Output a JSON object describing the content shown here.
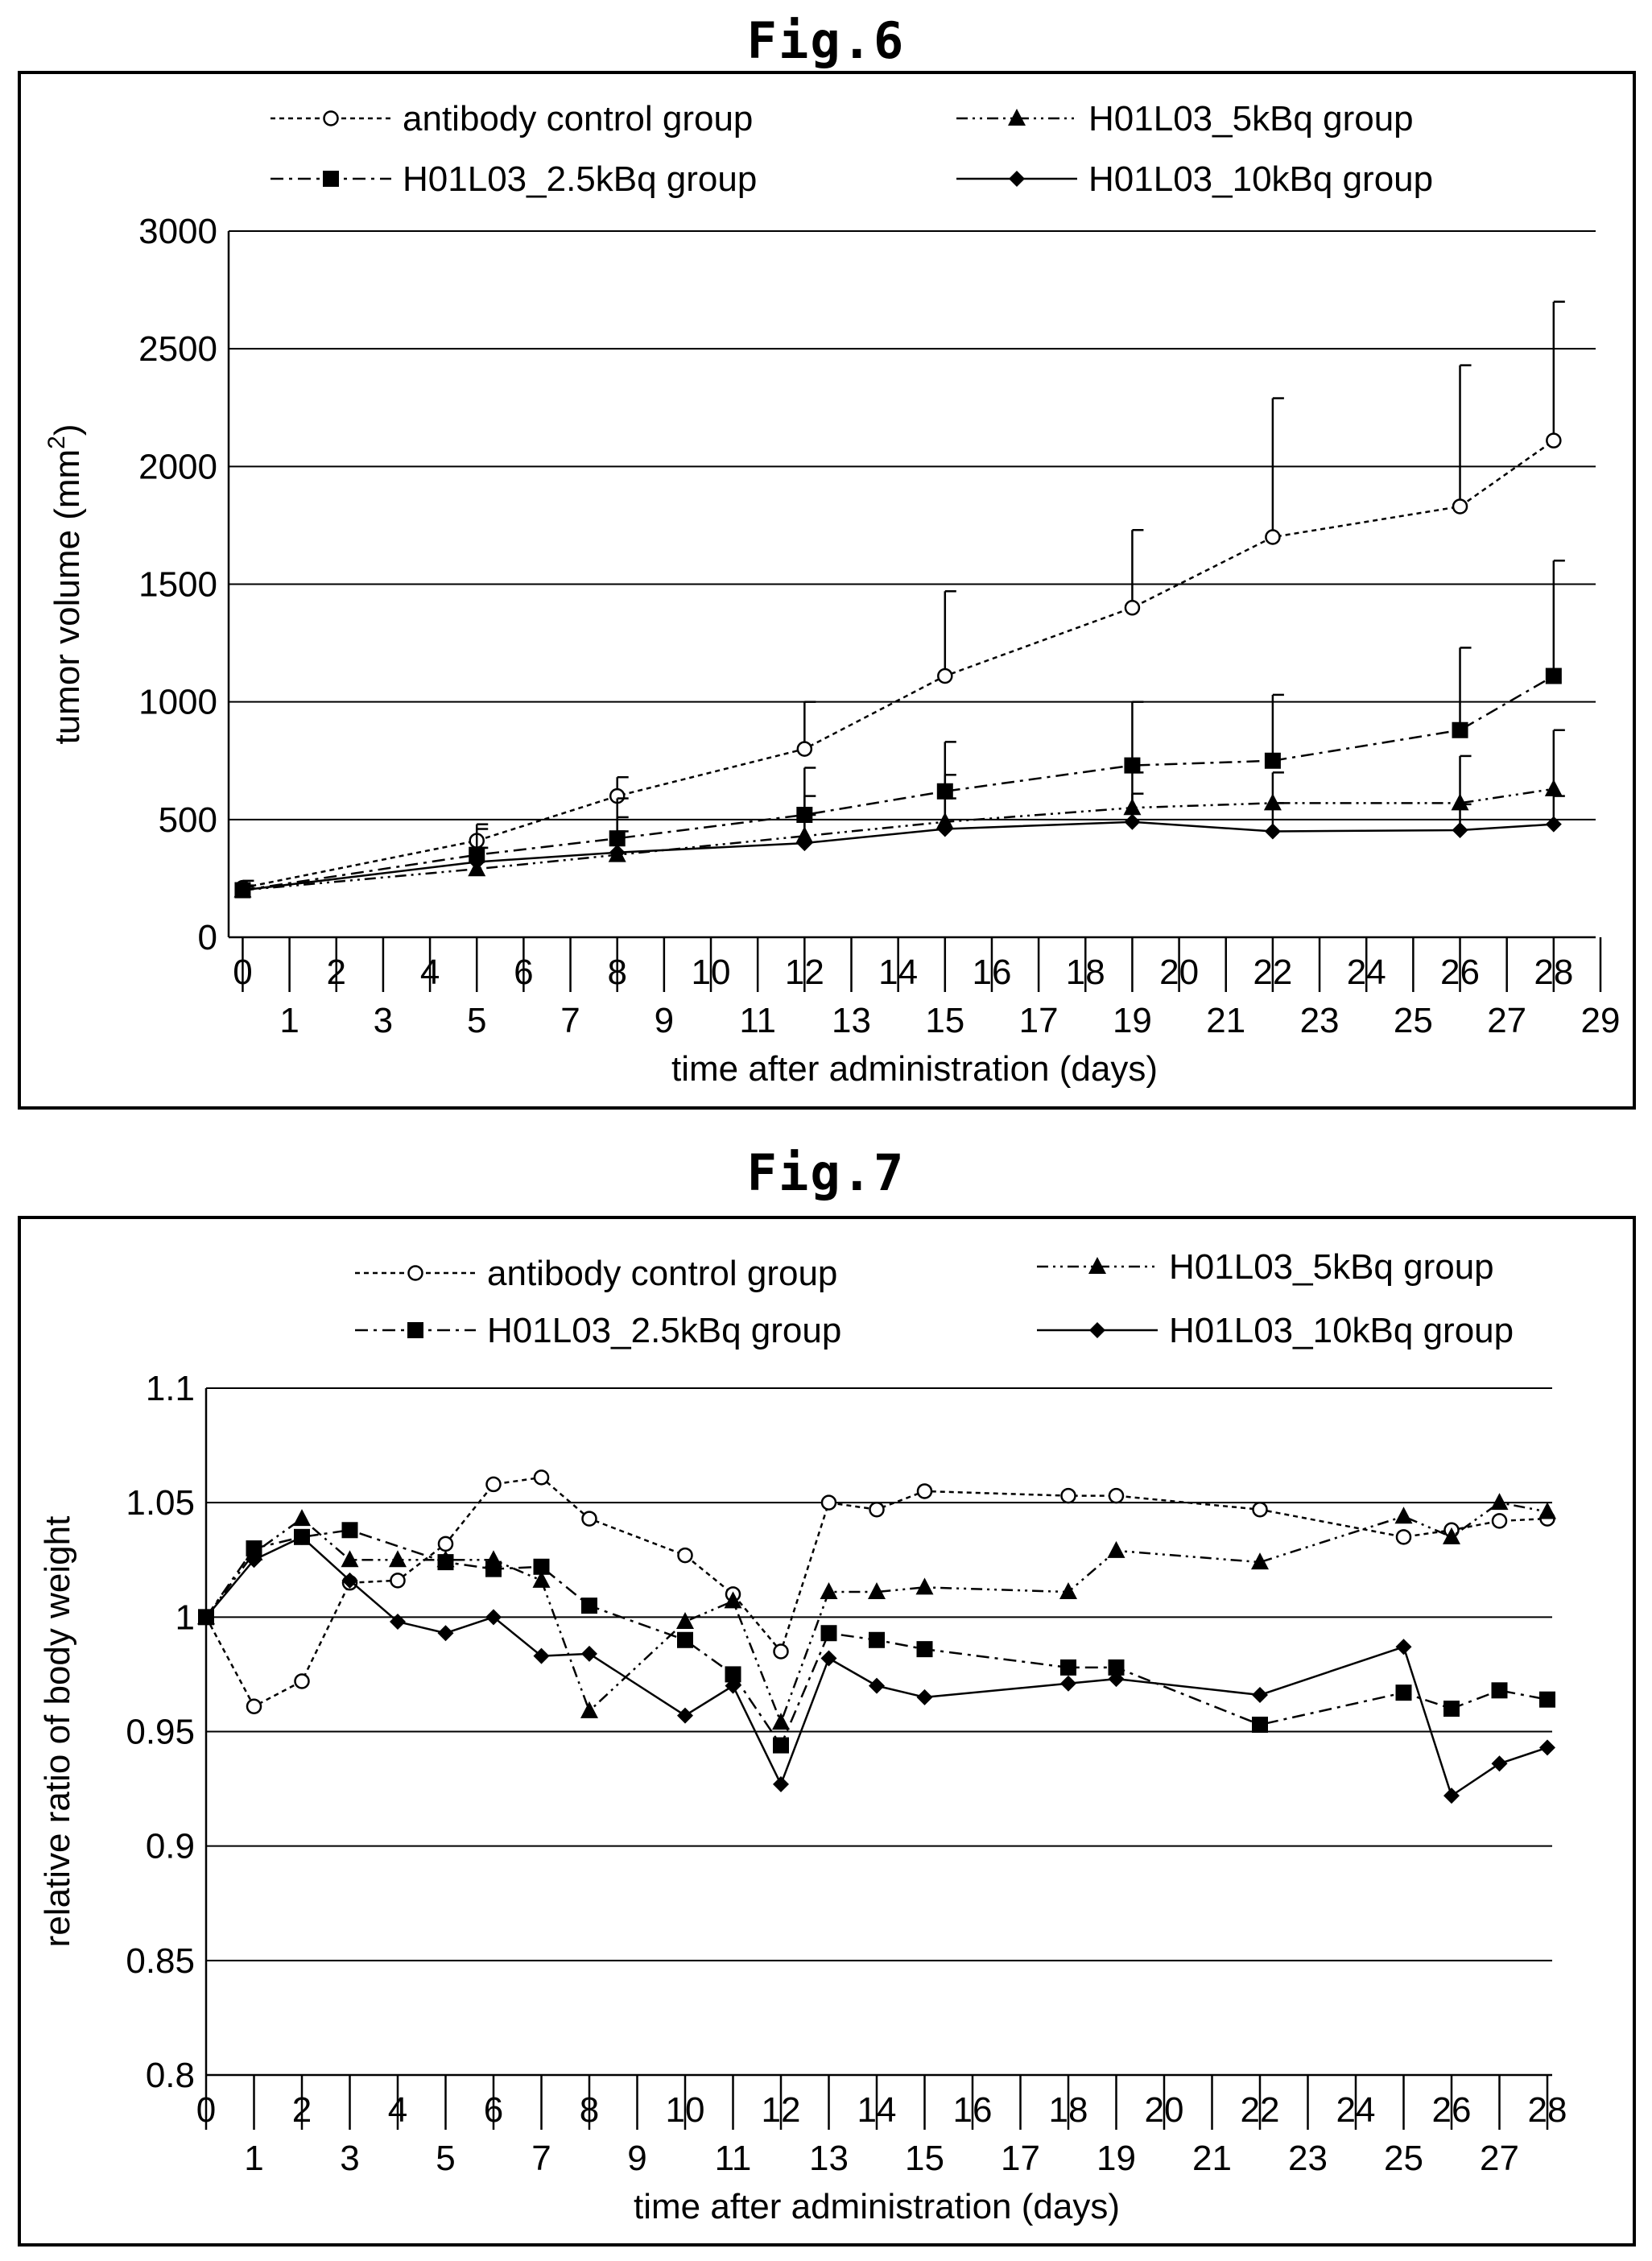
{
  "figures": [
    {
      "fig_label": "Fig.6",
      "chart_data": {
        "type": "line",
        "title": "",
        "xlabel": "time after administration (days)",
        "ylabel_main": "tumor volume (mm",
        "ylabel_sup": "2",
        "ylabel_close": ")",
        "ylim": [
          0,
          3000
        ],
        "yticks": [
          0,
          500,
          1000,
          1500,
          2000,
          2500,
          3000
        ],
        "xlim": [
          -0.3,
          29
        ],
        "x_tick_labels_upper": [
          {
            "label": "0",
            "x": 0
          },
          {
            "label": "2",
            "x": 2
          },
          {
            "label": "4",
            "x": 4
          },
          {
            "label": "6",
            "x": 6
          },
          {
            "label": "8",
            "x": 8
          },
          {
            "label": "10",
            "x": 10
          },
          {
            "label": "12",
            "x": 12
          },
          {
            "label": "14",
            "x": 14
          },
          {
            "label": "16",
            "x": 16
          },
          {
            "label": "18",
            "x": 18
          },
          {
            "label": "20",
            "x": 20
          },
          {
            "label": "22",
            "x": 22
          },
          {
            "label": "24",
            "x": 24
          },
          {
            "label": "26",
            "x": 26
          },
          {
            "label": "28",
            "x": 28
          }
        ],
        "x_tick_labels_lower": [
          {
            "label": "1",
            "x": 1
          },
          {
            "label": "3",
            "x": 3
          },
          {
            "label": "5",
            "x": 5
          },
          {
            "label": "7",
            "x": 7
          },
          {
            "label": "9",
            "x": 9
          },
          {
            "label": "11",
            "x": 11
          },
          {
            "label": "13",
            "x": 13
          },
          {
            "label": "15",
            "x": 15
          },
          {
            "label": "17",
            "x": 17
          },
          {
            "label": "19",
            "x": 19
          },
          {
            "label": "21",
            "x": 21
          },
          {
            "label": "23",
            "x": 23
          },
          {
            "label": "25",
            "x": 25
          },
          {
            "label": "27",
            "x": 27
          },
          {
            "label": "29",
            "x": 29
          }
        ],
        "grid": "horizontal",
        "legend": "top",
        "series": [
          {
            "name": "antibody control group",
            "marker": "circle-open",
            "dash": "6,5",
            "x": [
              0,
              5,
              8,
              12,
              15,
              19,
              22,
              26,
              28
            ],
            "values": [
              210,
              410,
              600,
              800,
              1110,
              1400,
              1700,
              1830,
              2110
            ],
            "err": [
              30,
              70,
              80,
              200,
              360,
              330,
              590,
              600,
              590
            ]
          },
          {
            "name": "H01L03_5kBq group",
            "marker": "triangle",
            "dash": "14,6,3,6,3,6",
            "x": [
              0,
              5,
              8,
              12,
              15,
              19,
              22,
              26,
              28
            ],
            "values": [
              200,
              290,
              350,
              430,
              490,
              550,
              570,
              570,
              630
            ],
            "err": [
              20,
              90,
              160,
              170,
              200,
              150,
              130,
              200,
              250
            ]
          },
          {
            "name": "H01L03_2.5kBq group",
            "marker": "square",
            "dash": "16,7,4,7",
            "x": [
              0,
              5,
              8,
              12,
              15,
              19,
              22,
              26,
              28
            ],
            "values": [
              200,
              350,
              420,
              520,
              620,
              730,
              750,
              880,
              1110
            ],
            "err": [
              20,
              110,
              170,
              200,
              210,
              270,
              280,
              350,
              490
            ]
          },
          {
            "name": "H01L03_10kBq group",
            "marker": "diamond",
            "dash": "",
            "x": [
              0,
              5,
              8,
              12,
              15,
              19,
              22,
              26,
              28
            ],
            "values": [
              200,
              320,
              360,
              400,
              460,
              490,
              450,
              455,
              480
            ],
            "err": [
              15,
              60,
              90,
              120,
              130,
              120,
              120,
              110,
              120
            ]
          }
        ]
      }
    },
    {
      "fig_label": "Fig.7",
      "chart_data": {
        "type": "line",
        "title": "",
        "xlabel": "time after administration (days)",
        "ylabel": "relative ratio of body weight",
        "ylim": [
          0.8,
          1.1
        ],
        "yticks": [
          0.8,
          0.85,
          0.9,
          0.95,
          1,
          1.05,
          1.1
        ],
        "ytick_labels": [
          "0.8",
          "0.85",
          "0.9",
          "0.95",
          "1",
          "1.05",
          "1.1"
        ],
        "xlim": [
          0,
          28
        ],
        "x_tick_labels_upper": [
          {
            "label": "0",
            "x": 0
          },
          {
            "label": "2",
            "x": 2
          },
          {
            "label": "4",
            "x": 4
          },
          {
            "label": "6",
            "x": 6
          },
          {
            "label": "8",
            "x": 8
          },
          {
            "label": "10",
            "x": 10
          },
          {
            "label": "12",
            "x": 12
          },
          {
            "label": "14",
            "x": 14
          },
          {
            "label": "16",
            "x": 16
          },
          {
            "label": "18",
            "x": 18
          },
          {
            "label": "20",
            "x": 20
          },
          {
            "label": "22",
            "x": 22
          },
          {
            "label": "24",
            "x": 24
          },
          {
            "label": "26",
            "x": 26
          },
          {
            "label": "28",
            "x": 28
          }
        ],
        "x_tick_labels_lower": [
          {
            "label": "1",
            "x": 1
          },
          {
            "label": "3",
            "x": 3
          },
          {
            "label": "5",
            "x": 5
          },
          {
            "label": "7",
            "x": 7
          },
          {
            "label": "9",
            "x": 9
          },
          {
            "label": "11",
            "x": 11
          },
          {
            "label": "13",
            "x": 13
          },
          {
            "label": "15",
            "x": 15
          },
          {
            "label": "17",
            "x": 17
          },
          {
            "label": "19",
            "x": 19
          },
          {
            "label": "21",
            "x": 21
          },
          {
            "label": "23",
            "x": 23
          },
          {
            "label": "25",
            "x": 25
          },
          {
            "label": "27",
            "x": 27
          }
        ],
        "grid": "horizontal",
        "legend": "top",
        "series": [
          {
            "name": "antibody control group",
            "marker": "circle-open",
            "dash": "6,5",
            "x": [
              0,
              1,
              2,
              3,
              4,
              5,
              6,
              7,
              8,
              10,
              11,
              12,
              13,
              14,
              15,
              18,
              19,
              22,
              25,
              26,
              27,
              28
            ],
            "values": [
              1.0,
              0.961,
              0.972,
              1.015,
              1.016,
              1.032,
              1.058,
              1.061,
              1.043,
              1.027,
              1.01,
              0.985,
              1.05,
              1.047,
              1.055,
              1.053,
              1.053,
              1.047,
              1.035,
              1.038,
              1.042,
              1.043
            ]
          },
          {
            "name": "H01L03_5kBq group",
            "marker": "triangle",
            "dash": "14,6,3,6,3,6",
            "x": [
              0,
              1,
              2,
              3,
              4,
              5,
              6,
              7,
              8,
              10,
              11,
              12,
              13,
              14,
              15,
              18,
              19,
              22,
              25,
              26,
              27,
              28
            ],
            "values": [
              1.0,
              1.028,
              1.043,
              1.025,
              1.025,
              1.025,
              1.025,
              1.016,
              0.959,
              0.998,
              1.007,
              0.954,
              1.011,
              1.011,
              1.013,
              1.011,
              1.029,
              1.024,
              1.044,
              1.035,
              1.05,
              1.046
            ]
          },
          {
            "name": "H01L03_2.5kBq group",
            "marker": "square",
            "dash": "16,7,4,7",
            "x": [
              0,
              1,
              2,
              3,
              5,
              6,
              7,
              8,
              10,
              11,
              12,
              13,
              14,
              15,
              18,
              19,
              22,
              25,
              26,
              27,
              28
            ],
            "values": [
              1.0,
              1.03,
              1.035,
              1.038,
              1.024,
              1.021,
              1.022,
              1.005,
              0.99,
              0.975,
              0.944,
              0.993,
              0.99,
              0.986,
              0.978,
              0.978,
              0.953,
              0.967,
              0.96,
              0.968,
              0.964
            ]
          },
          {
            "name": "H01L03_10kBq group",
            "marker": "diamond",
            "dash": "",
            "x": [
              0,
              1,
              2,
              3,
              4,
              5,
              6,
              7,
              8,
              10,
              11,
              12,
              13,
              14,
              15,
              18,
              19,
              22,
              25,
              26,
              27,
              28
            ],
            "values": [
              1.0,
              1.025,
              1.035,
              1.016,
              0.998,
              0.993,
              1.0,
              0.983,
              0.984,
              0.957,
              0.97,
              0.927,
              0.982,
              0.97,
              0.965,
              0.971,
              0.973,
              0.966,
              0.987,
              0.922,
              0.936,
              0.943
            ]
          }
        ]
      }
    }
  ]
}
